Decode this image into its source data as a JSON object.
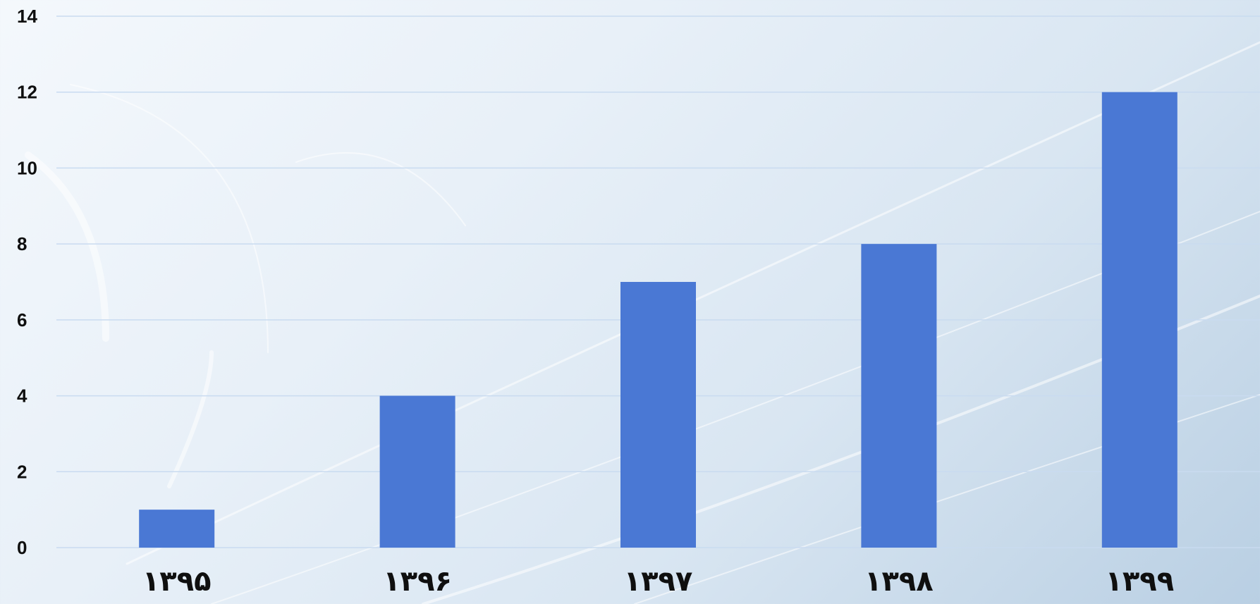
{
  "chart_data": {
    "type": "bar",
    "title": "",
    "xlabel": "",
    "ylabel": "",
    "categories": [
      "۱۳۹۵",
      "۱۳۹۶",
      "۱۳۹۷",
      "۱۳۹۸",
      "۱۳۹۹"
    ],
    "values": [
      1,
      4,
      7,
      8,
      12
    ],
    "ylim": [
      0,
      14
    ],
    "yticks": [
      0,
      2,
      4,
      6,
      8,
      10,
      12,
      14
    ],
    "grid": true,
    "legend": "none",
    "colors": {
      "bar": "#4a78d4",
      "gridline": "#c9dbf0",
      "tick_text": "#0f0f0f"
    }
  }
}
